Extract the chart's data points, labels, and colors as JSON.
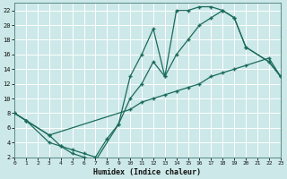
{
  "xlabel": "Humidex (Indice chaleur)",
  "xlim": [
    0,
    23
  ],
  "ylim": [
    2,
    23
  ],
  "yticks": [
    2,
    4,
    6,
    8,
    10,
    12,
    14,
    16,
    18,
    20,
    22
  ],
  "xticks": [
    0,
    1,
    2,
    3,
    4,
    5,
    6,
    7,
    8,
    9,
    10,
    11,
    12,
    13,
    14,
    15,
    16,
    17,
    18,
    19,
    20,
    21,
    22,
    23
  ],
  "bg_color": "#cce8e8",
  "grid_color": "#ffffff",
  "line_color": "#1a6b5a",
  "line1_x": [
    0,
    1,
    3,
    4,
    5,
    6,
    7,
    9,
    10,
    11,
    12,
    13,
    14,
    15,
    16,
    17,
    18,
    19,
    20,
    22,
    23
  ],
  "line1_y": [
    8,
    7,
    4,
    3.5,
    2.5,
    2,
    1.5,
    6.5,
    13,
    16,
    19.5,
    13,
    22,
    22,
    22.5,
    22.5,
    22,
    21,
    17,
    15,
    13
  ],
  "line2_x": [
    0,
    1,
    3,
    4,
    5,
    6,
    7,
    8,
    9,
    10,
    11,
    12,
    13,
    14,
    15,
    16,
    17,
    18,
    19,
    20,
    22,
    23
  ],
  "line2_y": [
    8,
    7,
    5,
    3.5,
    3,
    2.5,
    2,
    4.5,
    6.5,
    10,
    12,
    15,
    13,
    16,
    18,
    20,
    21,
    22,
    21,
    17,
    15,
    13
  ],
  "line3_x": [
    0,
    1,
    3,
    10,
    11,
    12,
    13,
    14,
    15,
    16,
    17,
    18,
    19,
    20,
    22,
    23
  ],
  "line3_y": [
    8,
    7,
    5,
    8.5,
    9.5,
    10,
    10.5,
    11,
    11.5,
    12,
    13,
    13.5,
    14,
    14.5,
    15.5,
    13
  ]
}
